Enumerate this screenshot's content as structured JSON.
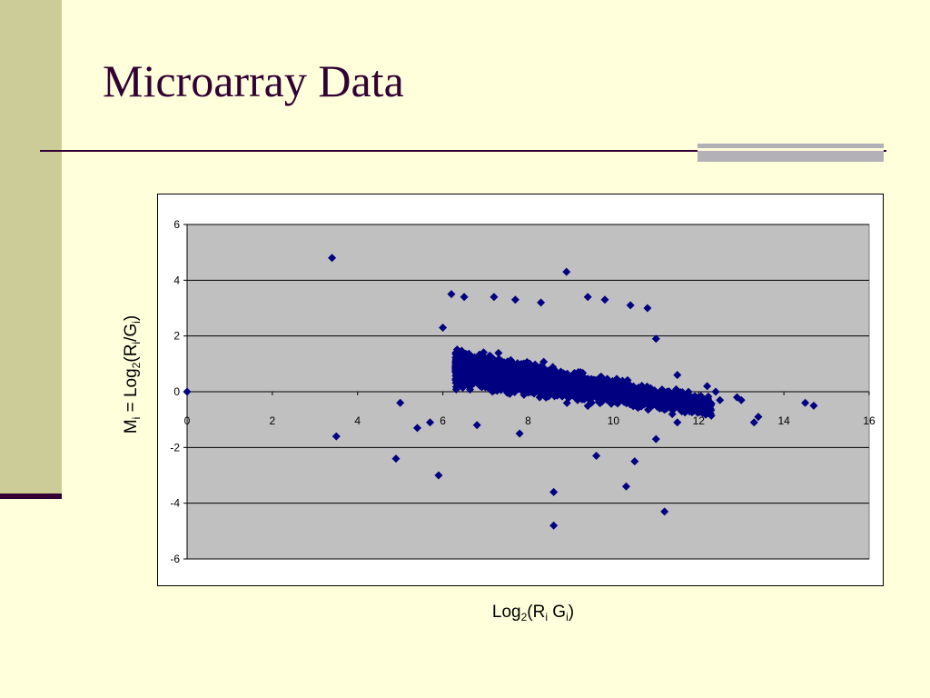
{
  "slide": {
    "title": "Microarray Data"
  },
  "colors": {
    "background": "#ffffdc",
    "stripe": "#cccc99",
    "title_text": "#330033",
    "accent_bar": "#b3b0b8",
    "plot_area": "#c0c0c0",
    "marker": "#000080"
  },
  "chart_data": {
    "type": "scatter",
    "marker": "diamond",
    "xlabel": {
      "base": "Log",
      "sub1": "2",
      "mid": "(R",
      "sub2": "i",
      "mid2": " G",
      "sub3": "i",
      "end": ")"
    },
    "ylabel": {
      "m": "M",
      "msub": "i",
      "eq": " = Log",
      "two": "2",
      "r": "(R",
      "rsub": "i",
      "g": "/G",
      "gsub": "i",
      "end": ")"
    },
    "xlim": [
      0,
      16
    ],
    "ylim": [
      -6,
      6
    ],
    "xticks": [
      "0",
      "2",
      "4",
      "6",
      "8",
      "10",
      "12",
      "14",
      "16"
    ],
    "yticks": [
      "6",
      "4",
      "2",
      "0",
      "-2",
      "-4",
      "-6"
    ],
    "grid": "horizontal",
    "legend": "none",
    "outliers": [
      [
        0.0,
        0.0
      ],
      [
        3.4,
        4.8
      ],
      [
        3.5,
        -1.6
      ],
      [
        4.9,
        -2.4
      ],
      [
        5.0,
        -0.4
      ],
      [
        5.4,
        -1.3
      ],
      [
        5.7,
        -1.1
      ],
      [
        5.9,
        -3.0
      ],
      [
        6.0,
        2.3
      ],
      [
        6.2,
        3.5
      ],
      [
        6.5,
        3.4
      ],
      [
        8.9,
        4.3
      ],
      [
        8.6,
        -3.6
      ],
      [
        8.6,
        -4.8
      ],
      [
        11.2,
        -4.3
      ],
      [
        13.3,
        -1.1
      ],
      [
        13.4,
        -0.9
      ],
      [
        14.5,
        -0.4
      ],
      [
        14.7,
        -0.5
      ],
      [
        12.9,
        -0.2
      ],
      [
        12.5,
        -0.3
      ],
      [
        12.2,
        0.2
      ],
      [
        11.5,
        0.6
      ],
      [
        11.0,
        1.9
      ],
      [
        10.8,
        3.0
      ],
      [
        10.4,
        3.1
      ],
      [
        9.8,
        3.3
      ],
      [
        9.4,
        3.4
      ],
      [
        7.2,
        3.4
      ],
      [
        7.7,
        3.3
      ],
      [
        8.3,
        3.2
      ],
      [
        6.8,
        -1.2
      ],
      [
        7.8,
        -1.5
      ],
      [
        9.6,
        -2.3
      ],
      [
        10.5,
        -2.5
      ],
      [
        10.3,
        -3.4
      ],
      [
        11.0,
        -1.7
      ],
      [
        11.5,
        -1.1
      ],
      [
        12.4,
        0.0
      ],
      [
        13.0,
        -0.3
      ]
    ]
  }
}
